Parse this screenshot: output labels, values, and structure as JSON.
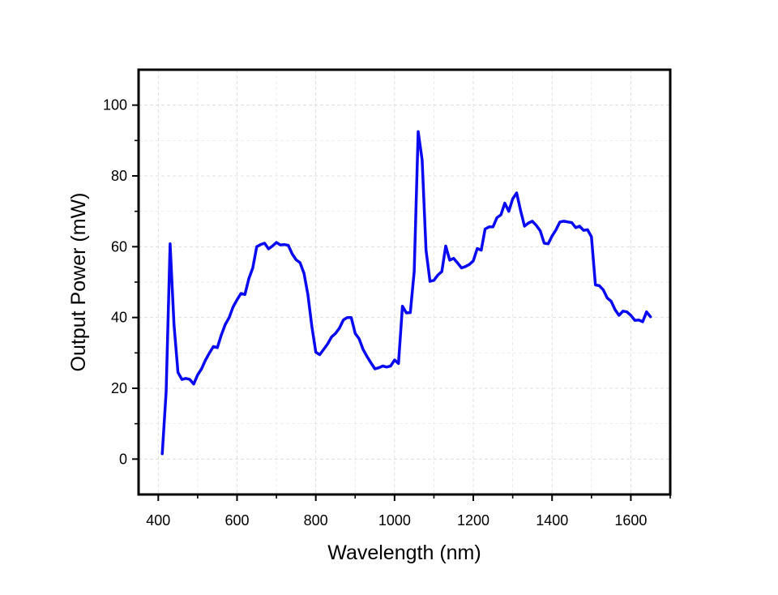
{
  "chart_data": {
    "type": "line",
    "title": "",
    "xlabel": "Wavelength (nm)",
    "ylabel": "Output Power (mW)",
    "xlim": [
      350,
      1700
    ],
    "ylim": [
      -10,
      110
    ],
    "xticks": [
      400,
      600,
      800,
      1000,
      1200,
      1400,
      1600
    ],
    "yticks": [
      0,
      20,
      40,
      60,
      80,
      100
    ],
    "grid": true,
    "legend": "none",
    "series": [
      {
        "color": "#0a0af0",
        "x": [
          410,
          420,
          430,
          440,
          450,
          460,
          470,
          480,
          490,
          500,
          510,
          520,
          530,
          540,
          550,
          560,
          570,
          580,
          590,
          600,
          610,
          620,
          630,
          640,
          650,
          660,
          670,
          680,
          690,
          700,
          710,
          720,
          730,
          740,
          750,
          760,
          770,
          780,
          790,
          800,
          810,
          820,
          830,
          840,
          850,
          860,
          870,
          880,
          890,
          900,
          910,
          920,
          930,
          940,
          950,
          960,
          970,
          980,
          990,
          1000,
          1010,
          1020,
          1030,
          1040,
          1050,
          1060,
          1070,
          1080,
          1090,
          1100,
          1110,
          1120,
          1130,
          1140,
          1150,
          1160,
          1170,
          1180,
          1190,
          1200,
          1210,
          1220,
          1230,
          1240,
          1250,
          1260,
          1270,
          1280,
          1290,
          1300,
          1310,
          1320,
          1330,
          1340,
          1350,
          1360,
          1370,
          1380,
          1390,
          1400,
          1410,
          1420,
          1430,
          1440,
          1450,
          1460,
          1470,
          1480,
          1490,
          1500,
          1510,
          1520,
          1530,
          1540,
          1550,
          1560,
          1570,
          1580,
          1590,
          1600,
          1610,
          1620,
          1630,
          1640,
          1650
        ],
        "y": [
          1.5,
          19,
          60.8,
          38,
          24.5,
          22.5,
          22.8,
          22.5,
          21.2,
          23.8,
          25.5,
          28,
          30,
          31.8,
          31.5,
          35,
          38,
          40,
          43,
          45,
          46.8,
          46.5,
          51,
          54,
          60,
          60.6,
          61,
          59.4,
          60.2,
          61.2,
          60.5,
          60.6,
          60.4,
          58,
          56.3,
          55.5,
          52.5,
          46.5,
          37.5,
          30.2,
          29.5,
          31,
          32.5,
          34.5,
          35.5,
          37,
          39.3,
          40,
          40,
          35.5,
          34,
          31,
          29,
          27.2,
          25.5,
          25.8,
          26.3,
          26,
          26.3,
          28,
          27,
          43.2,
          41.3,
          41.4,
          53,
          92.5,
          84.5,
          59,
          50.2,
          50.5,
          52,
          53,
          60.2,
          56.2,
          56.7,
          55.4,
          54,
          54.4,
          55,
          56,
          59.5,
          59,
          65,
          65.6,
          65.6,
          68.2,
          69,
          72.3,
          70,
          73.5,
          75.2,
          70.3,
          65.8,
          66.7,
          67.2,
          66,
          64.5,
          61,
          60.8,
          63,
          64.8,
          67,
          67.2,
          67,
          66.8,
          65.4,
          65.8,
          64.6,
          64.8,
          62.8,
          49.2,
          49,
          47.8,
          45.5,
          44.6,
          42.2,
          40.6,
          41.8,
          41.6,
          40.6,
          39.2,
          39.3,
          38.8,
          41.6,
          40.2
        ]
      }
    ]
  }
}
